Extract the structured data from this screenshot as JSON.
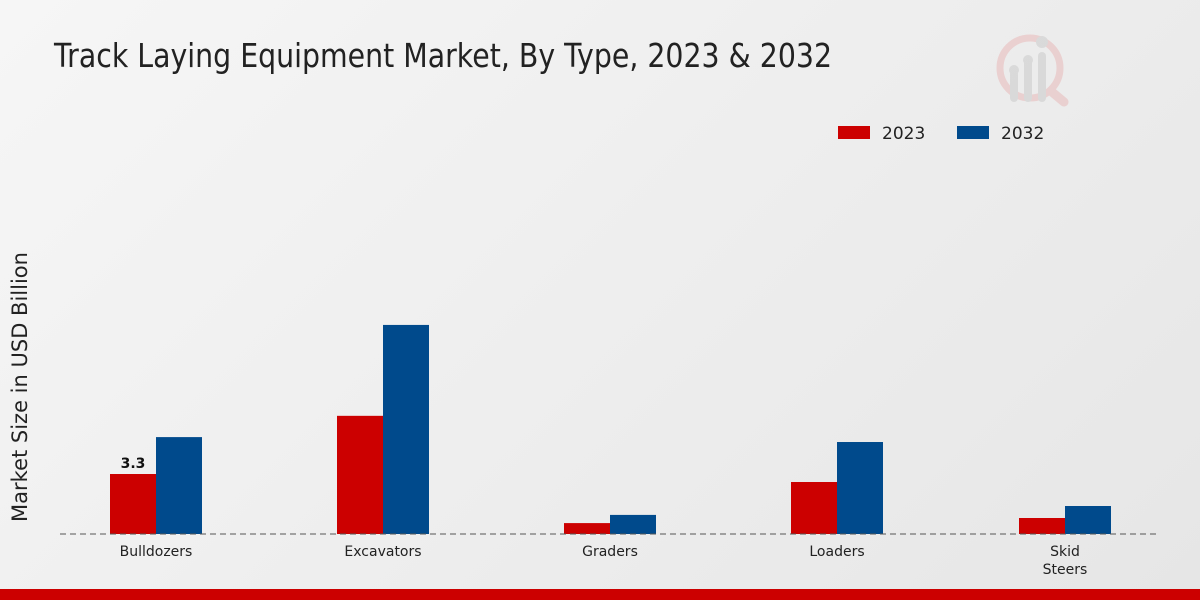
{
  "chart_data": {
    "type": "bar",
    "title": "Track Laying Equipment Market, By Type, 2023 & 2032",
    "ylabel": "Market Size in USD Billion",
    "xlabel": "",
    "categories": [
      "Bulldozers",
      "Excavators",
      "Graders",
      "Loaders",
      "Skid Steers"
    ],
    "series": [
      {
        "name": "2023",
        "color": "#cc0000",
        "values": [
          3.3,
          6.5,
          0.6,
          2.86,
          0.88
        ]
      },
      {
        "name": "2032",
        "color": "#004a8c",
        "values": [
          5.33,
          11.5,
          1.05,
          5.06,
          1.54
        ]
      }
    ],
    "data_labels": [
      {
        "series": "2023",
        "category": "Bulldozers",
        "text": "3.3"
      }
    ],
    "ylim": [
      0,
      14
    ],
    "grid": false,
    "legend_position": "top-right"
  }
}
